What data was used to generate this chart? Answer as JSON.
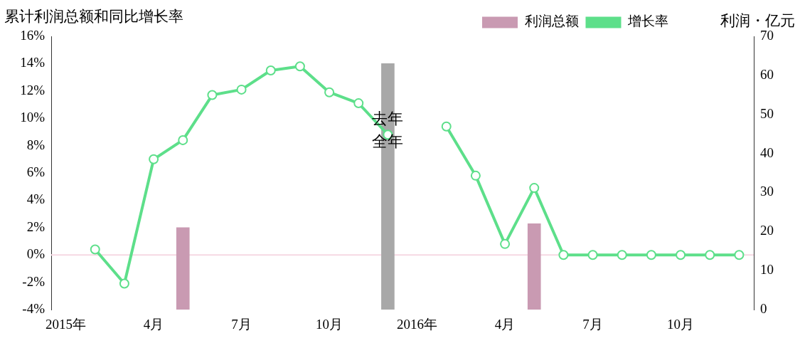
{
  "chart_data": {
    "type": "bar",
    "title": "累计利润总额和同比增长率",
    "y2label": "利润・亿元",
    "categories": [
      "2015年",
      null,
      null,
      "4月",
      null,
      null,
      "7月",
      null,
      null,
      "10月",
      null,
      null,
      "2016年",
      null,
      null,
      "4月",
      null,
      null,
      "7月",
      null,
      null,
      "10月",
      null,
      null
    ],
    "series": [
      {
        "name": "利润总额",
        "axis": "y2",
        "colors": [
          null,
          null,
          null,
          null,
          "#c99ab2",
          null,
          null,
          null,
          null,
          null,
          null,
          "#a8a8a8",
          null,
          null,
          null,
          null,
          "#c99ab2",
          null,
          null,
          null,
          null,
          null,
          null,
          null
        ],
        "values": [
          null,
          null,
          null,
          null,
          21,
          null,
          null,
          null,
          null,
          null,
          null,
          63,
          null,
          null,
          null,
          null,
          22,
          null,
          null,
          null,
          null,
          null,
          null,
          null
        ]
      },
      {
        "name": "增长率",
        "type": "line",
        "color": "#5ddf8a",
        "marker": "circle",
        "values": [
          null,
          0.4,
          -2.1,
          7.0,
          8.4,
          11.7,
          12.1,
          13.5,
          13.8,
          11.9,
          11.1,
          8.8,
          null,
          9.4,
          5.8,
          0.8,
          4.9,
          0,
          0,
          0,
          0,
          0,
          0,
          0
        ]
      }
    ],
    "ylim": [
      -4,
      16
    ],
    "yticks": [
      {
        "value": -4,
        "label": "-4%"
      },
      {
        "value": -2,
        "label": "-2%"
      },
      {
        "value": 0,
        "label": "0%"
      },
      {
        "value": 2,
        "label": "2%"
      },
      {
        "value": 4,
        "label": "4%"
      },
      {
        "value": 6,
        "label": "6%"
      },
      {
        "value": 8,
        "label": "8%"
      },
      {
        "value": 10,
        "label": "10%"
      },
      {
        "value": 12,
        "label": "12%"
      },
      {
        "value": 14,
        "label": "14%"
      },
      {
        "value": 16,
        "label": "16%"
      }
    ],
    "y2lim": [
      0,
      70
    ],
    "y2ticks": [
      0,
      10,
      20,
      30,
      40,
      50,
      60,
      70
    ],
    "ref_lines": [
      {
        "axis": "y",
        "value": 0,
        "color": "#f6d8e3"
      }
    ],
    "annotations": [
      "去年全年"
    ],
    "grid": false,
    "legend": "top right"
  }
}
